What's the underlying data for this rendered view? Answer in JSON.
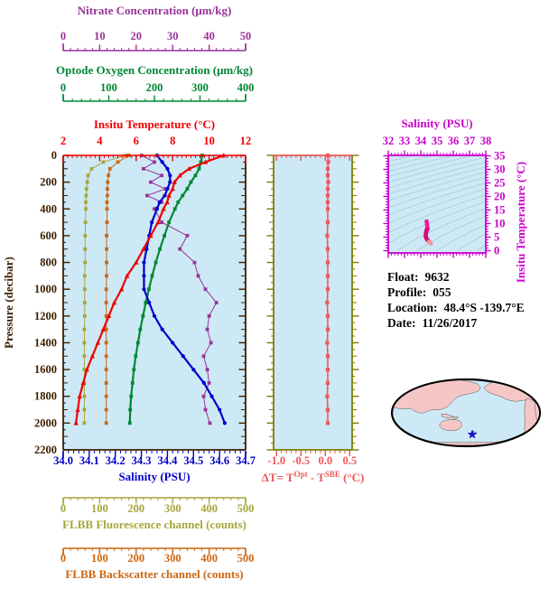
{
  "info": {
    "lines": [
      {
        "label": "Float:",
        "value": "9632"
      },
      {
        "label": "Profile:",
        "value": "055"
      },
      {
        "label": "Location:",
        "value": "48.4°S  -139.7°E"
      },
      {
        "label": "Date:",
        "value": "11/26/2017"
      }
    ]
  },
  "map": {
    "ocean_color": "#cde9f6",
    "land_color": "#f5c6c6",
    "outline_color": "#000000",
    "star_color": "#1414dd"
  },
  "chart_data": [
    {
      "id": "profile_plot",
      "type": "line",
      "background": "#cde9f6",
      "frame_color": "#3d1f00",
      "pressure_axis": {
        "label": "Pressure (decibar)",
        "min": 0,
        "max": 2200,
        "ticks": [
          0,
          200,
          400,
          600,
          800,
          1000,
          1200,
          1400,
          1600,
          1800,
          2000,
          2200
        ],
        "minor_step": 50,
        "color": "#3d1f00"
      },
      "pressures": [
        0,
        50,
        100,
        150,
        200,
        250,
        300,
        350,
        400,
        500,
        600,
        700,
        800,
        900,
        1000,
        1100,
        1200,
        1300,
        1400,
        1500,
        1600,
        1700,
        1800,
        1900,
        2000
      ],
      "series": [
        {
          "name": "nitrate",
          "label": "Nitrate Concentration (μm/kg)",
          "color": "#993399",
          "marker": "square",
          "width": 1,
          "axis": {
            "min": 0,
            "max": 50,
            "ticks": [
              0,
              10,
              20,
              30,
              40,
              50
            ],
            "tick_labels": [
              "0",
              "10",
              "20",
              "30",
              "40",
              "50"
            ],
            "minor_step": 2
          },
          "values": [
            21.5,
            25,
            22,
            27,
            24,
            28,
            23,
            27,
            25,
            27,
            34,
            32,
            36,
            37,
            39,
            42,
            40,
            39.5,
            40.5,
            38.5,
            39.5,
            40,
            38.5,
            39,
            40.2
          ]
        },
        {
          "name": "fluorescence",
          "label": "FLBB Fluorescence channel (counts)",
          "color": "#a6a63c",
          "marker": "square",
          "width": 1,
          "axis": {
            "min": 0,
            "max": 500,
            "ticks": [
              0,
              100,
              200,
              300,
              400,
              500
            ],
            "tick_labels": [
              "0",
              "100",
              "200",
              "300",
              "400",
              "500"
            ],
            "minor_step": 20
          },
          "values": [
            172,
            110,
            78,
            68,
            66,
            64,
            63,
            62,
            62,
            61,
            60,
            60,
            60,
            59,
            59,
            59,
            59,
            58,
            58,
            58,
            58,
            58,
            58,
            58,
            58
          ]
        },
        {
          "name": "backscatter",
          "label": "FLBB Backscatter channel (counts)",
          "color": "#cc6611",
          "marker": "square",
          "width": 1,
          "axis": {
            "min": 0,
            "max": 500,
            "ticks": [
              0,
              100,
              200,
              300,
              400,
              500
            ],
            "tick_labels": [
              "0",
              "100",
              "200",
              "300",
              "400",
              "500"
            ],
            "minor_step": 20
          },
          "values": [
            180,
            150,
            128,
            124,
            122,
            121,
            121,
            120,
            120,
            120,
            119,
            119,
            119,
            119,
            118,
            118,
            118,
            118,
            118,
            118,
            118,
            118,
            118,
            118,
            118
          ]
        },
        {
          "name": "oxygen",
          "label": "Optode Oxygen Concentration (μm/kg)",
          "color": "#008833",
          "marker": "square",
          "width": 2.2,
          "axis": {
            "min": 0,
            "max": 400,
            "ticks": [
              0,
              100,
              200,
              300,
              400
            ],
            "tick_labels": [
              "0",
              "100",
              "200",
              "300",
              "400"
            ],
            "minor_step": 20
          },
          "values": [
            305,
            302,
            298,
            290,
            280,
            272,
            262,
            252,
            245,
            232,
            222,
            212,
            203,
            195,
            188,
            181,
            175,
            169,
            164,
            159,
            155,
            152,
            149,
            147,
            146
          ]
        },
        {
          "name": "salinity",
          "label": "Salinity (PSU)",
          "color": "#0000cc",
          "marker": "circle",
          "width": 2.2,
          "axis": {
            "min": 34.0,
            "max": 34.7,
            "ticks": [
              34.0,
              34.1,
              34.2,
              34.3,
              34.4,
              34.5,
              34.6,
              34.7
            ],
            "tick_labels": [
              "34.0",
              "34.1",
              "34.2",
              "34.3",
              "34.4",
              "34.5",
              "34.6",
              "34.7"
            ],
            "minor_step": 0.02
          },
          "values": [
            34.36,
            34.38,
            34.4,
            34.41,
            34.41,
            34.4,
            34.39,
            34.37,
            34.36,
            34.34,
            34.33,
            34.32,
            34.31,
            34.31,
            34.31,
            34.33,
            34.35,
            34.38,
            34.42,
            34.46,
            34.5,
            34.54,
            34.57,
            34.6,
            34.62
          ]
        },
        {
          "name": "temperature",
          "label": "Insitu Temperature (°C)",
          "color": "#ee0000",
          "marker": "triangle",
          "width": 2.2,
          "axis": {
            "min": 2,
            "max": 12,
            "ticks": [
              2,
              4,
              6,
              8,
              10,
              12
            ],
            "tick_labels": [
              "2",
              "4",
              "6",
              "8",
              "10",
              "12"
            ],
            "minor_step": 0.25
          },
          "values": [
            10.8,
            9.8,
            8.9,
            8.4,
            8.1,
            8.0,
            7.8,
            7.7,
            7.5,
            7.2,
            6.8,
            6.4,
            6.0,
            5.5,
            5.2,
            4.8,
            4.5,
            4.2,
            3.9,
            3.6,
            3.3,
            3.1,
            2.9,
            2.8,
            2.7
          ]
        }
      ]
    },
    {
      "id": "delta_t_plot",
      "type": "line",
      "background": "#cde9f6",
      "frame_color": "#7d7d00",
      "point_color": "#ee5858",
      "x_axis": {
        "label_parts": [
          "ΔT= T",
          {
            "sup": "Opt"
          },
          " - T",
          {
            "sup": "SBE"
          },
          " (°C)"
        ],
        "min": -1.06,
        "max": 0.55,
        "ticks": [
          -1.0,
          -0.5,
          0.0,
          0.5
        ],
        "tick_labels": [
          "-1.0",
          "-0.5",
          "0.0",
          "0.5"
        ],
        "minor_step": 0.1,
        "color": "#ee5858"
      },
      "pressures": [
        0,
        50,
        100,
        150,
        200,
        250,
        300,
        350,
        400,
        500,
        600,
        700,
        800,
        900,
        1000,
        1100,
        1200,
        1300,
        1400,
        1500,
        1600,
        1700,
        1800,
        1900,
        2000
      ],
      "values": [
        0.05,
        0.06,
        0.05,
        0.05,
        0.06,
        0.05,
        0.05,
        0.05,
        0.05,
        0.05,
        0.04,
        0.05,
        0.05,
        0.05,
        0.05,
        0.04,
        0.05,
        0.05,
        0.04,
        0.05,
        0.05,
        0.05,
        0.04,
        0.05,
        0.05
      ]
    },
    {
      "id": "ts_diagram",
      "type": "scatter",
      "background": "#cde9f6",
      "frame_color": "#cc00cc",
      "contour_color": "#a9ccd8",
      "point_colors": {
        "shallow": "#f01a9c",
        "mid": "#dc0a78",
        "deep": "#f2939b"
      },
      "x_axis": {
        "label": "Salinity (PSU)",
        "min": 32,
        "max": 38,
        "ticks": [
          32,
          33,
          34,
          35,
          36,
          37,
          38
        ],
        "tick_labels": [
          "32",
          "33",
          "34",
          "35",
          "36",
          "37",
          "38"
        ],
        "minor_step": 0.2,
        "color": "#cc00cc"
      },
      "y_axis": {
        "label": "Insitu Temperature (°C)",
        "min": 0,
        "max": 35,
        "ticks": [
          0,
          5,
          10,
          15,
          20,
          25,
          30,
          35
        ],
        "tick_labels": [
          "0",
          "5",
          "10",
          "15",
          "20",
          "25",
          "30",
          "35"
        ],
        "minor_step": 1,
        "color": "#cc00cc"
      },
      "points_note": "salinity vs temperature pairs taken from profile_plot series"
    }
  ]
}
